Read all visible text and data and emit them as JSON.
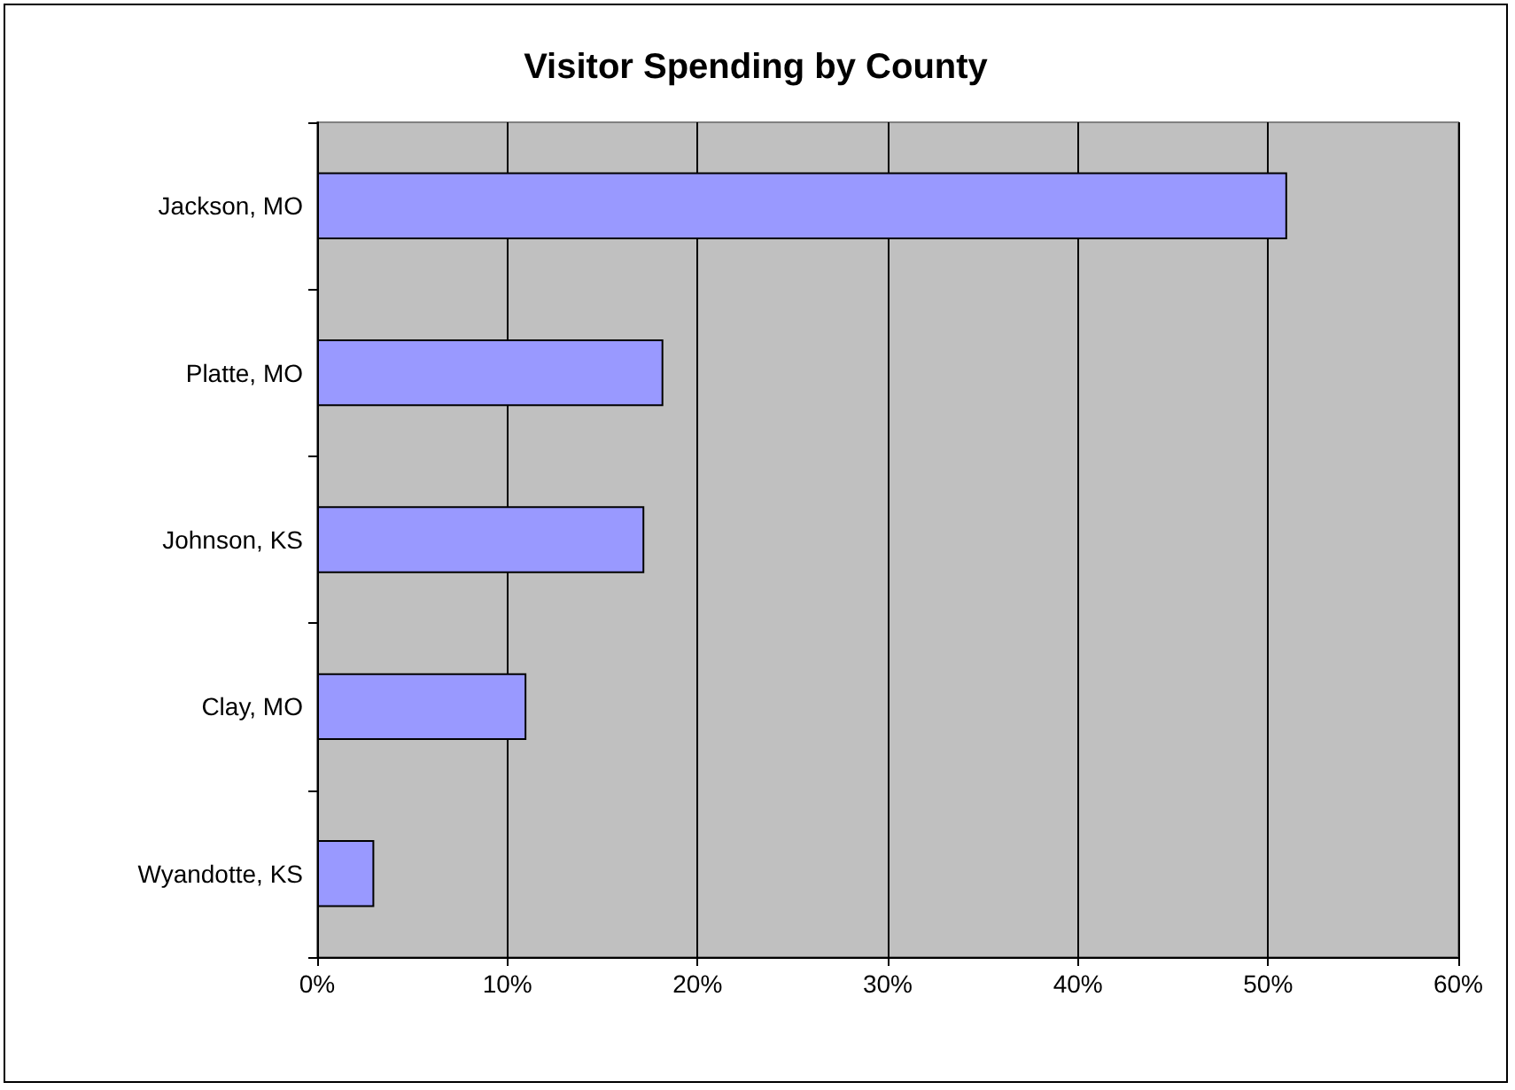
{
  "chart_data": {
    "type": "bar",
    "orientation": "horizontal",
    "title": "Visitor Spending by County",
    "categories": [
      "Jackson, MO",
      "Platte, MO",
      "Johnson, KS",
      "Clay, MO",
      "Wyandotte, KS"
    ],
    "values": [
      51,
      18.2,
      17.2,
      11,
      3
    ],
    "color": "#9999ff",
    "xlim": [
      0,
      60
    ],
    "xticks": [
      {
        "value": 0,
        "label": "0%"
      },
      {
        "value": 10,
        "label": "10%"
      },
      {
        "value": 20,
        "label": "20%"
      },
      {
        "value": 30,
        "label": "30%"
      },
      {
        "value": 40,
        "label": "40%"
      },
      {
        "value": 50,
        "label": "50%"
      },
      {
        "value": 60,
        "label": "60%"
      }
    ],
    "grid": "x"
  }
}
